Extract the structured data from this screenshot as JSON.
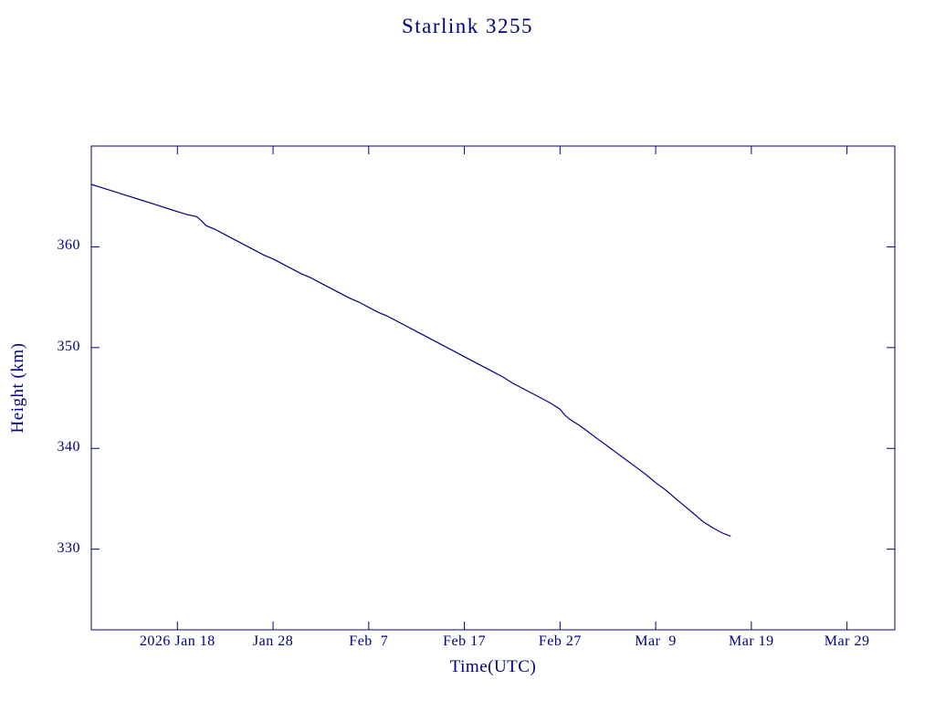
{
  "chart_data": {
    "type": "line",
    "title": "Starlink 3255",
    "xlabel": "Time(UTC)",
    "ylabel": "Height (km)",
    "line_color": "#000080",
    "background_color": "#ffffff",
    "grid": false,
    "legend": false,
    "x_axis": {
      "unit": "days, day 0 = 2026 Jan 9 at left plot edge",
      "min_day": 0,
      "max_day": 84,
      "ticks": [
        {
          "day": 9,
          "label": "2026 Jan 18"
        },
        {
          "day": 19,
          "label": "Jan 28"
        },
        {
          "day": 29,
          "label": "Feb  7"
        },
        {
          "day": 39,
          "label": "Feb 17"
        },
        {
          "day": 49,
          "label": "Feb 27"
        },
        {
          "day": 59,
          "label": "Mar  9"
        },
        {
          "day": 69,
          "label": "Mar 19"
        },
        {
          "day": 79,
          "label": "Mar 29"
        }
      ]
    },
    "y_axis": {
      "unit": "km",
      "min": 322,
      "max": 370,
      "ticks": [
        {
          "value": 330,
          "label": "330"
        },
        {
          "value": 340,
          "label": "340"
        },
        {
          "value": 350,
          "label": "350"
        },
        {
          "value": 360,
          "label": "360"
        }
      ]
    },
    "series": [
      {
        "name": "Starlink 3255 orbital height",
        "points_format": "[day, height_km]",
        "points": [
          [
            0,
            366.2
          ],
          [
            1,
            365.9
          ],
          [
            2,
            365.6
          ],
          [
            3,
            365.3
          ],
          [
            4,
            365.0
          ],
          [
            5,
            364.7
          ],
          [
            6,
            364.4
          ],
          [
            7,
            364.1
          ],
          [
            8,
            363.8
          ],
          [
            9,
            363.5
          ],
          [
            10,
            363.2
          ],
          [
            11,
            363.0
          ],
          [
            11.5,
            362.6
          ],
          [
            12,
            362.1
          ],
          [
            13,
            361.7
          ],
          [
            14,
            361.2
          ],
          [
            15,
            360.7
          ],
          [
            16,
            360.2
          ],
          [
            17,
            359.7
          ],
          [
            18,
            359.2
          ],
          [
            19,
            358.8
          ],
          [
            20,
            358.3
          ],
          [
            21,
            357.8
          ],
          [
            22,
            357.3
          ],
          [
            23,
            356.9
          ],
          [
            24,
            356.4
          ],
          [
            25,
            355.9
          ],
          [
            26,
            355.4
          ],
          [
            27,
            354.9
          ],
          [
            28,
            354.5
          ],
          [
            29,
            354.0
          ],
          [
            30,
            353.5
          ],
          [
            31,
            353.1
          ],
          [
            32,
            352.6
          ],
          [
            33,
            352.1
          ],
          [
            34,
            351.6
          ],
          [
            35,
            351.1
          ],
          [
            36,
            350.6
          ],
          [
            37,
            350.1
          ],
          [
            38,
            349.6
          ],
          [
            39,
            349.1
          ],
          [
            40,
            348.6
          ],
          [
            41,
            348.1
          ],
          [
            42,
            347.6
          ],
          [
            43,
            347.1
          ],
          [
            44,
            346.5
          ],
          [
            45,
            346.0
          ],
          [
            46,
            345.5
          ],
          [
            47,
            345.0
          ],
          [
            48,
            344.5
          ],
          [
            49,
            343.9
          ],
          [
            49.5,
            343.3
          ],
          [
            50,
            342.9
          ],
          [
            51,
            342.3
          ],
          [
            52,
            341.6
          ],
          [
            53,
            340.9
          ],
          [
            54,
            340.2
          ],
          [
            55,
            339.5
          ],
          [
            56,
            338.8
          ],
          [
            57,
            338.1
          ],
          [
            58,
            337.4
          ],
          [
            59,
            336.6
          ],
          [
            60,
            335.9
          ],
          [
            61,
            335.1
          ],
          [
            62,
            334.3
          ],
          [
            63,
            333.5
          ],
          [
            64,
            332.7
          ],
          [
            65,
            332.1
          ],
          [
            66,
            331.6
          ],
          [
            66.8,
            331.3
          ]
        ]
      }
    ]
  }
}
